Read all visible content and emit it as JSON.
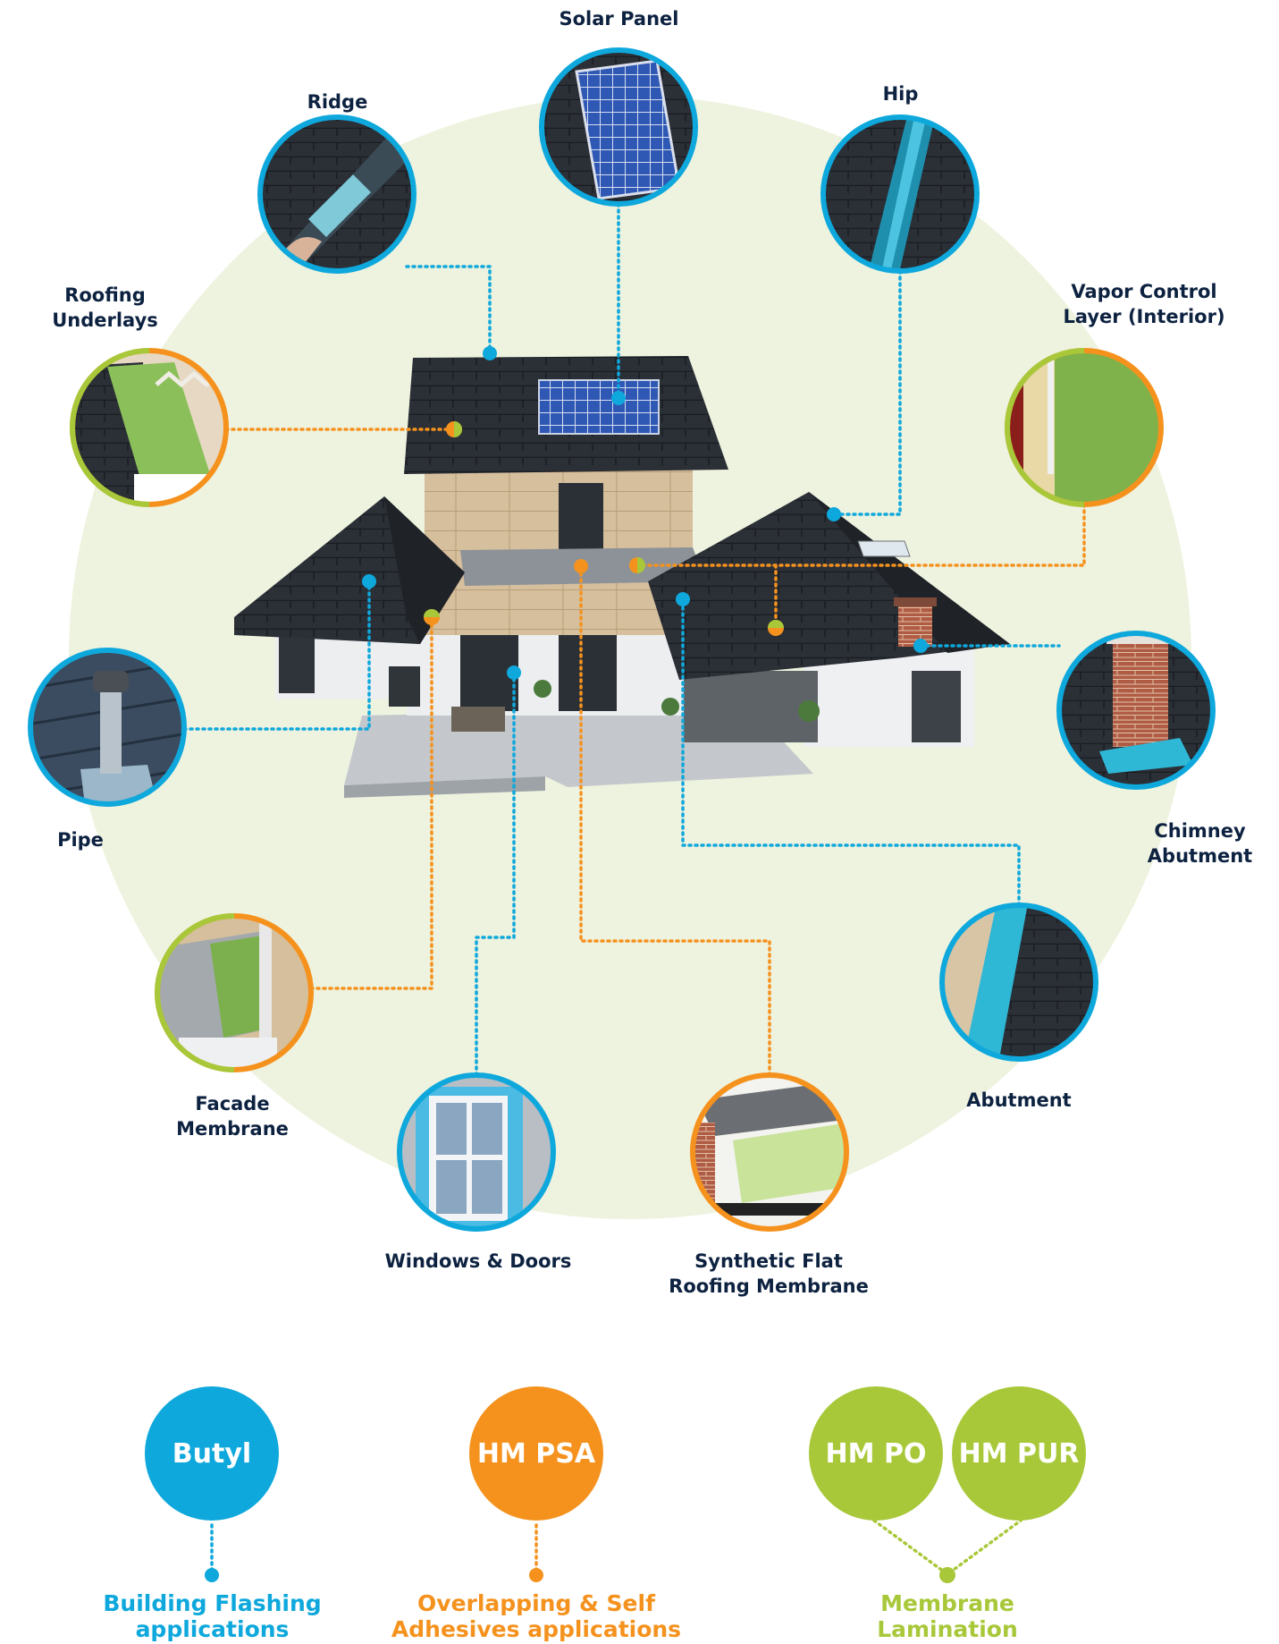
{
  "colors": {
    "blue": "#0ea8dc",
    "orange": "#f5921e",
    "green": "#a8c83a",
    "navy": "#0d2240",
    "halo": "#eef3df"
  },
  "labels": {
    "solar_panel": "Solar Panel",
    "ridge": "Ridge",
    "hip": "Hip",
    "roofing_underlays": "Roofing\nUnderlays",
    "vapor_control": "Vapor Control\nLayer (Interior)",
    "pipe": "Pipe",
    "chimney_abutment": "Chimney\nAbutment",
    "facade_membrane": "Facade\nMembrane",
    "abutment": "Abutment",
    "windows_doors": "Windows & Doors",
    "synthetic_flat_roofing": "Synthetic Flat\nRoofing Membrane"
  },
  "legend": {
    "butyl": {
      "chip": "Butyl",
      "caption": "Building Flashing\napplications"
    },
    "hm_psa": {
      "chip": "HM PSA",
      "caption": "Overlapping & Self\nAdhesives applications"
    },
    "hm_po": {
      "chip": "HM PO"
    },
    "hm_pur": {
      "chip": "HM PUR"
    },
    "lamination": {
      "caption": "Membrane\nLamination"
    }
  }
}
